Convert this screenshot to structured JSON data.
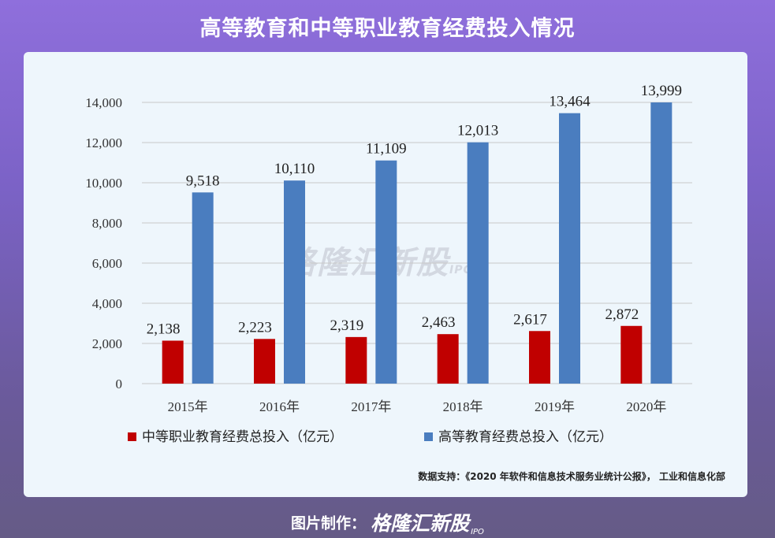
{
  "title": "高等教育和中等职业教育经费投入情况",
  "source": "数据支持：《2020 年软件和信息技术服务业统计公报》， 工业和信息化部",
  "watermark": {
    "brand": "格隆汇新股",
    "sub": "IPO"
  },
  "footer": {
    "credit": "图片制作：",
    "brand": "格隆汇新股",
    "sub": "IPO"
  },
  "colors": {
    "vocational": "#c00000",
    "higher": "#4a7dbf"
  },
  "chart_data": {
    "type": "bar",
    "categories": [
      "2015年",
      "2016年",
      "2017年",
      "2018年",
      "2019年",
      "2020年"
    ],
    "series": [
      {
        "name": "中等职业教育经费总投入（亿元）",
        "values": [
          2138,
          2223,
          2319,
          2463,
          2617,
          2872
        ],
        "labels": [
          "2,138",
          "2,223",
          "2,319",
          "2,463",
          "2,617",
          "2,872"
        ]
      },
      {
        "name": "高等教育经费总投入（亿元）",
        "values": [
          9518,
          10110,
          11109,
          12013,
          13464,
          13999
        ],
        "labels": [
          "9,518",
          "10,110",
          "11,109",
          "12,013",
          "13,464",
          "13,999"
        ]
      }
    ],
    "ylim": [
      0,
      14000
    ],
    "yticks": [
      0,
      2000,
      4000,
      6000,
      8000,
      10000,
      12000,
      14000
    ],
    "ytick_labels": [
      "0",
      "2,000",
      "4,000",
      "6,000",
      "8,000",
      "10,000",
      "12,000",
      "14,000"
    ],
    "grid": true,
    "legend": "bottom"
  }
}
